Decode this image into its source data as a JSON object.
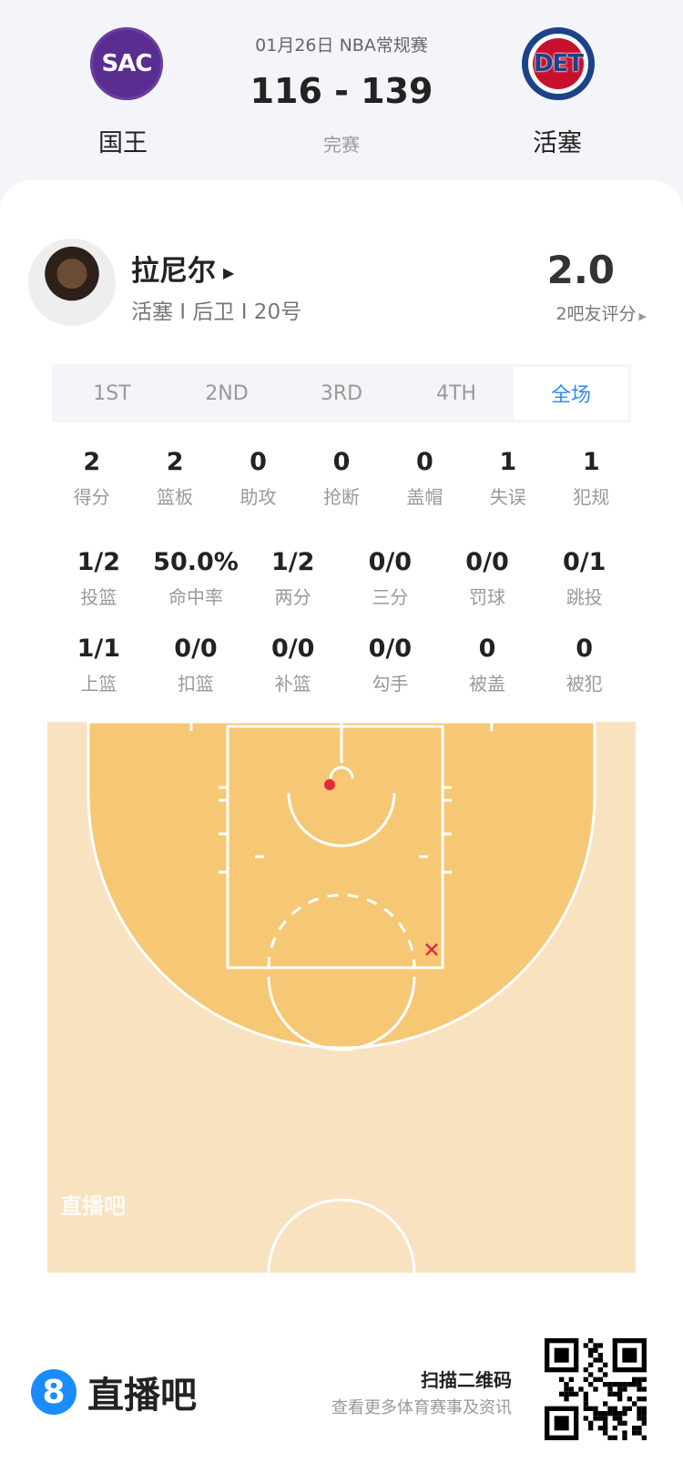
{
  "header": {
    "date_league": "01月26日 NBA常规赛",
    "score": "116 - 139",
    "status": "完赛",
    "home": {
      "abbr": "SAC",
      "name": "国王",
      "color": "#5a2d91"
    },
    "away": {
      "abbr": "DET",
      "name": "活塞",
      "color": "#1d428a"
    }
  },
  "player": {
    "name": "拉尼尔",
    "info": "活塞 I 后卫 I 20号",
    "rating": "2.0",
    "rating_label": "2吧友评分"
  },
  "tabs": [
    {
      "label": "1ST"
    },
    {
      "label": "2ND"
    },
    {
      "label": "3RD"
    },
    {
      "label": "4TH"
    },
    {
      "label": "全场",
      "active": true
    }
  ],
  "stats_row1": [
    {
      "v": "2",
      "l": "得分"
    },
    {
      "v": "2",
      "l": "篮板"
    },
    {
      "v": "0",
      "l": "助攻"
    },
    {
      "v": "0",
      "l": "抢断"
    },
    {
      "v": "0",
      "l": "盖帽"
    },
    {
      "v": "1",
      "l": "失误"
    },
    {
      "v": "1",
      "l": "犯规"
    }
  ],
  "stats_row2": [
    {
      "v": "1/2",
      "l": "投篮"
    },
    {
      "v": "50.0%",
      "l": "命中率"
    },
    {
      "v": "1/2",
      "l": "两分"
    },
    {
      "v": "0/0",
      "l": "三分"
    },
    {
      "v": "0/0",
      "l": "罚球"
    },
    {
      "v": "0/1",
      "l": "跳投"
    }
  ],
  "stats_row3": [
    {
      "v": "1/1",
      "l": "上篮"
    },
    {
      "v": "0/0",
      "l": "扣篮"
    },
    {
      "v": "0/0",
      "l": "补篮"
    },
    {
      "v": "0/0",
      "l": "勾手"
    },
    {
      "v": "0",
      "l": "被盖"
    },
    {
      "v": "0",
      "l": "被犯"
    }
  ],
  "shot_chart": {
    "watermark": "直播吧",
    "shots": [
      {
        "result": "made",
        "color": "#e02b3a"
      },
      {
        "result": "missed",
        "color": "#e02b3a"
      }
    ]
  },
  "footer": {
    "brand_num": "8",
    "brand": "直播吧",
    "scan": "扫描二维码",
    "more": "查看更多体育赛事及资讯"
  }
}
